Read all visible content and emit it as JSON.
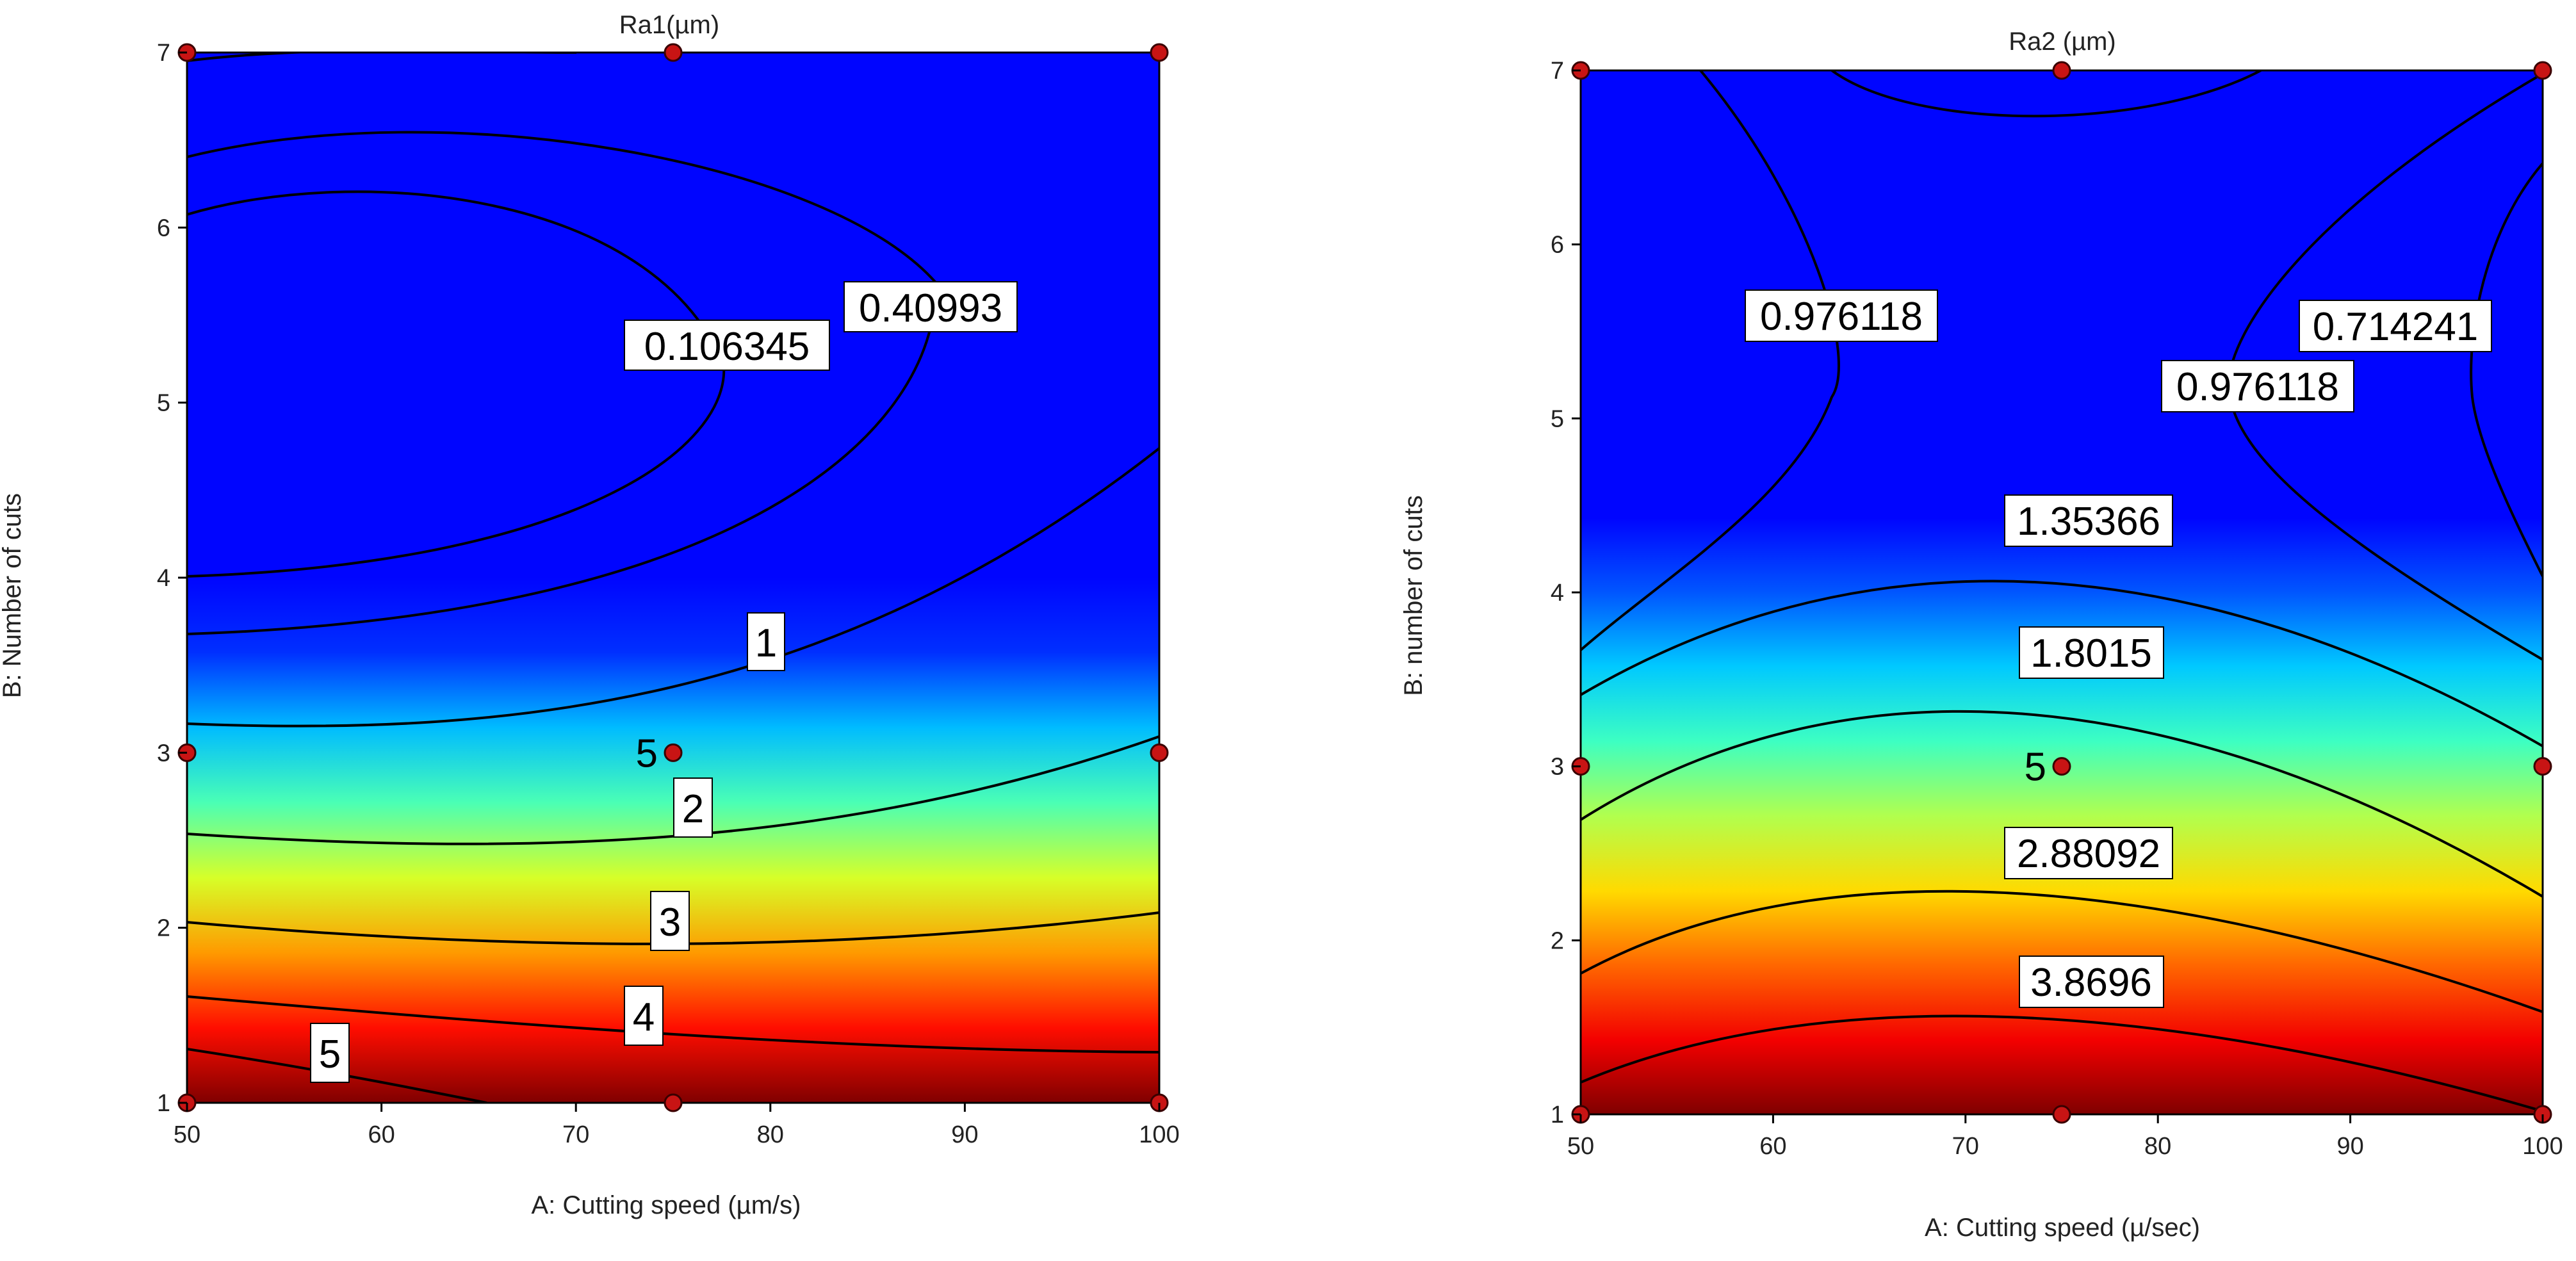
{
  "chart_data": [
    {
      "type": "contour",
      "title": "Ra1(µm)",
      "xlabel": "A: Cutting speed (µm/s)",
      "ylabel": "B: Number of cuts",
      "xlim": [
        50,
        100
      ],
      "ylim": [
        1,
        7
      ],
      "x_ticks": [
        "50",
        "60",
        "70",
        "80",
        "90",
        "100"
      ],
      "y_ticks": [
        "1",
        "2",
        "3",
        "4",
        "5",
        "6",
        "7"
      ],
      "colormap": "jet",
      "contour_levels": [
        "0.106345",
        "0.40993",
        "1",
        "2",
        "3",
        "4",
        "5"
      ],
      "design_points": [
        {
          "x": 50,
          "y": 7
        },
        {
          "x": 75,
          "y": 7
        },
        {
          "x": 100,
          "y": 7
        },
        {
          "x": 50,
          "y": 3
        },
        {
          "x": 75,
          "y": 3
        },
        {
          "x": 100,
          "y": 3
        },
        {
          "x": 50,
          "y": 1
        },
        {
          "x": 75,
          "y": 1
        },
        {
          "x": 100,
          "y": 1
        }
      ],
      "center_point_label": "5",
      "grid": false
    },
    {
      "type": "contour",
      "title": "Ra2 (µm)",
      "xlabel": "A: Cutting speed  (µ/sec)",
      "ylabel": "B: number of cuts",
      "xlim": [
        50,
        100
      ],
      "ylim": [
        1,
        7
      ],
      "x_ticks": [
        "50",
        "60",
        "70",
        "80",
        "90",
        "100"
      ],
      "y_ticks": [
        "1",
        "2",
        "3",
        "4",
        "5",
        "6",
        "7"
      ],
      "colormap": "jet",
      "contour_levels": [
        "0.976118",
        "0.714241",
        "0.976118",
        "1.35366",
        "1.8015",
        "2.88092",
        "3.8696"
      ],
      "design_points": [
        {
          "x": 50,
          "y": 7
        },
        {
          "x": 75,
          "y": 7
        },
        {
          "x": 100,
          "y": 7
        },
        {
          "x": 50,
          "y": 3
        },
        {
          "x": 75,
          "y": 3
        },
        {
          "x": 100,
          "y": 3
        },
        {
          "x": 50,
          "y": 1
        },
        {
          "x": 75,
          "y": 1
        },
        {
          "x": 100,
          "y": 1
        }
      ],
      "center_point_label": "5",
      "grid": false
    }
  ]
}
